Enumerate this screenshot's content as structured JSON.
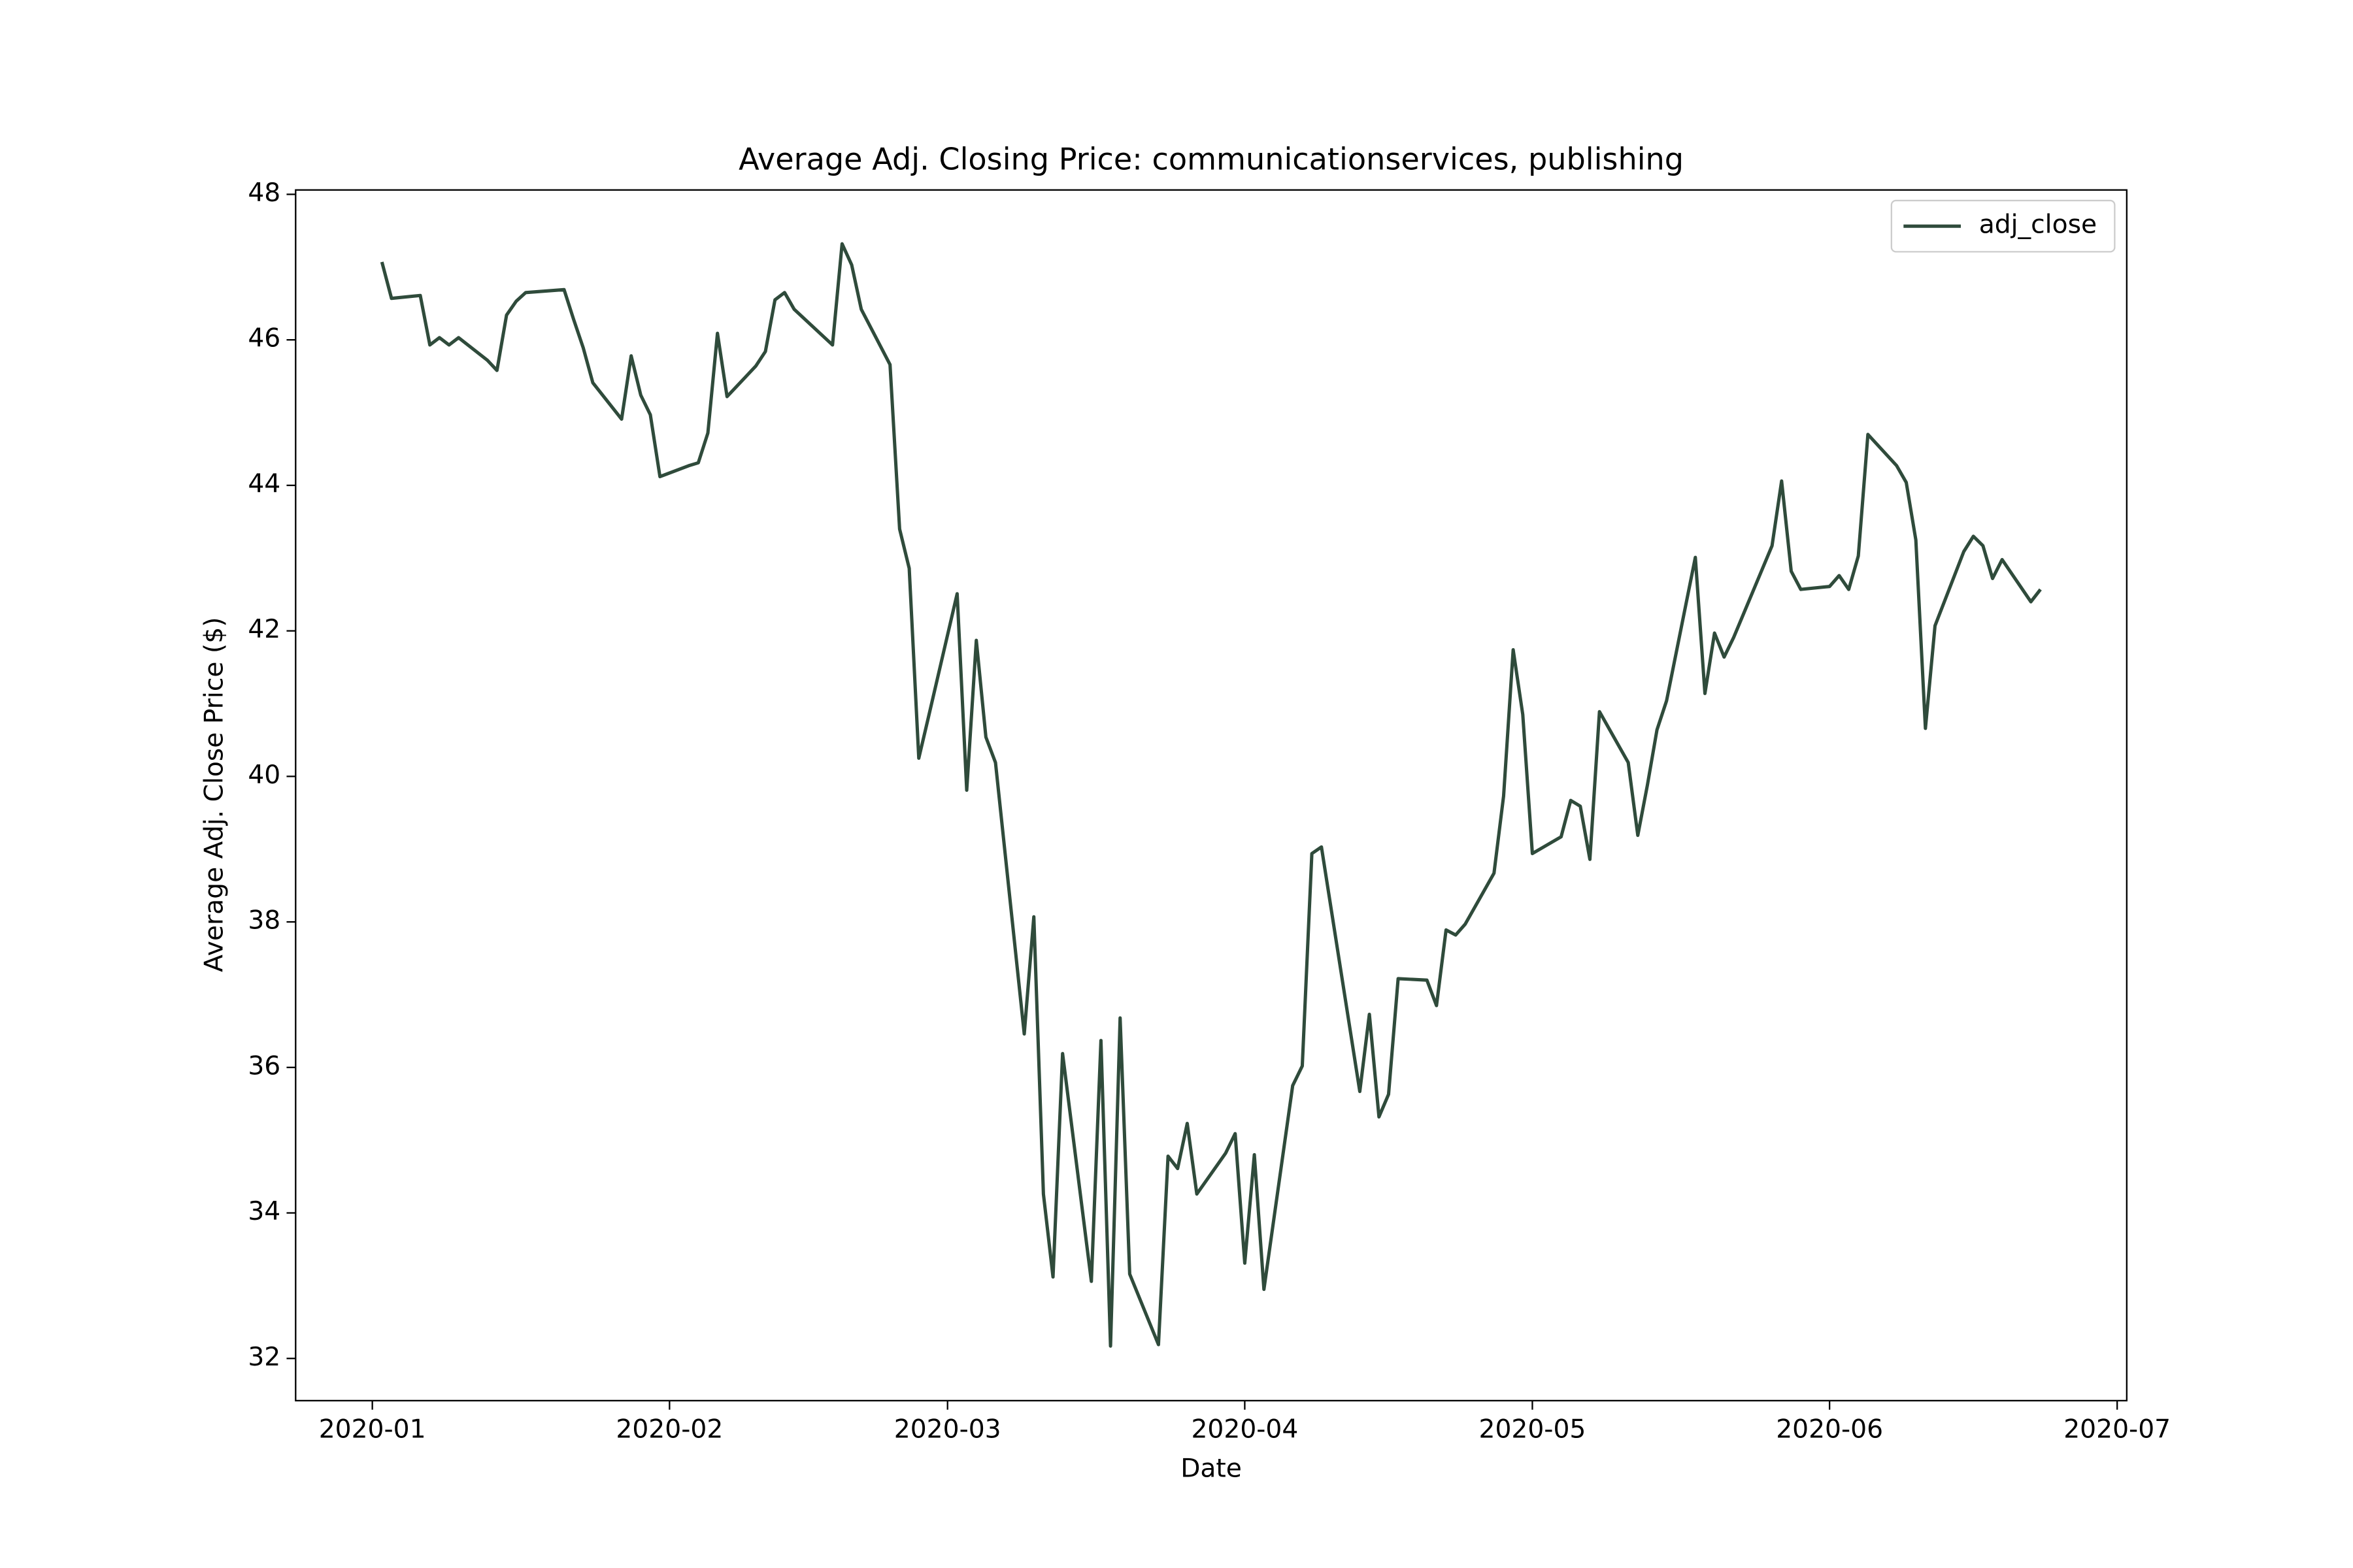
{
  "chart_data": {
    "type": "line",
    "title": "Average Adj. Closing Price: communicationservices, publishing",
    "xlabel": "Date",
    "ylabel": "Average Adj. Close Price ($)",
    "x": [
      "2020-01-02",
      "2020-01-03",
      "2020-01-06",
      "2020-01-07",
      "2020-01-08",
      "2020-01-09",
      "2020-01-10",
      "2020-01-13",
      "2020-01-14",
      "2020-01-15",
      "2020-01-16",
      "2020-01-17",
      "2020-01-21",
      "2020-01-22",
      "2020-01-23",
      "2020-01-24",
      "2020-01-27",
      "2020-01-28",
      "2020-01-29",
      "2020-01-30",
      "2020-01-31",
      "2020-02-03",
      "2020-02-04",
      "2020-02-05",
      "2020-02-06",
      "2020-02-07",
      "2020-02-10",
      "2020-02-11",
      "2020-02-12",
      "2020-02-13",
      "2020-02-14",
      "2020-02-18",
      "2020-02-19",
      "2020-02-20",
      "2020-02-21",
      "2020-02-24",
      "2020-02-25",
      "2020-02-26",
      "2020-02-27",
      "2020-02-28",
      "2020-03-02",
      "2020-03-03",
      "2020-03-04",
      "2020-03-05",
      "2020-03-06",
      "2020-03-09",
      "2020-03-10",
      "2020-03-11",
      "2020-03-12",
      "2020-03-13",
      "2020-03-16",
      "2020-03-17",
      "2020-03-18",
      "2020-03-19",
      "2020-03-20",
      "2020-03-23",
      "2020-03-24",
      "2020-03-25",
      "2020-03-26",
      "2020-03-27",
      "2020-03-30",
      "2020-03-31",
      "2020-04-01",
      "2020-04-02",
      "2020-04-03",
      "2020-04-06",
      "2020-04-07",
      "2020-04-08",
      "2020-04-09",
      "2020-04-13",
      "2020-04-14",
      "2020-04-15",
      "2020-04-16",
      "2020-04-17",
      "2020-04-20",
      "2020-04-21",
      "2020-04-22",
      "2020-04-23",
      "2020-04-24",
      "2020-04-27",
      "2020-04-28",
      "2020-04-29",
      "2020-04-30",
      "2020-05-01",
      "2020-05-04",
      "2020-05-05",
      "2020-05-06",
      "2020-05-07",
      "2020-05-08",
      "2020-05-11",
      "2020-05-12",
      "2020-05-13",
      "2020-05-14",
      "2020-05-15",
      "2020-05-18",
      "2020-05-19",
      "2020-05-20",
      "2020-05-21",
      "2020-05-22",
      "2020-05-26",
      "2020-05-27",
      "2020-05-28",
      "2020-05-29",
      "2020-06-01",
      "2020-06-02",
      "2020-06-03",
      "2020-06-04",
      "2020-06-05",
      "2020-06-08",
      "2020-06-09",
      "2020-06-10",
      "2020-06-11",
      "2020-06-12",
      "2020-06-15",
      "2020-06-16",
      "2020-06-17",
      "2020-06-18",
      "2020-06-19",
      "2020-06-22",
      "2020-06-23"
    ],
    "series": [
      {
        "name": "adj_close",
        "color": "#2f4b3b",
        "values": [
          47.07,
          46.57,
          46.61,
          45.93,
          46.03,
          45.93,
          46.03,
          45.72,
          45.58,
          46.34,
          46.53,
          46.65,
          46.69,
          46.28,
          45.89,
          45.41,
          44.91,
          45.78,
          45.24,
          44.97,
          44.12,
          44.27,
          44.31,
          44.72,
          46.09,
          45.22,
          45.64,
          45.84,
          46.55,
          46.65,
          46.42,
          45.93,
          47.32,
          47.03,
          46.42,
          45.66,
          43.4,
          42.86,
          40.25,
          40.81,
          42.51,
          39.81,
          41.87,
          40.54,
          40.19,
          36.46,
          38.07,
          34.26,
          33.12,
          36.19,
          33.06,
          36.37,
          32.17,
          36.68,
          33.16,
          32.19,
          34.78,
          34.61,
          35.23,
          34.26,
          34.82,
          35.09,
          33.31,
          34.8,
          32.95,
          35.75,
          36.02,
          38.94,
          39.03,
          35.67,
          36.73,
          35.32,
          35.63,
          37.22,
          37.2,
          36.85,
          37.89,
          37.82,
          37.97,
          38.67,
          39.73,
          41.74,
          40.85,
          38.94,
          39.17,
          39.67,
          39.59,
          38.86,
          40.89,
          40.19,
          39.19,
          39.88,
          40.64,
          41.04,
          43.01,
          41.14,
          41.97,
          41.64,
          41.91,
          43.17,
          44.06,
          42.82,
          42.57,
          42.61,
          42.76,
          42.57,
          43.03,
          44.7,
          44.27,
          44.04,
          43.25,
          40.66,
          42.07,
          43.09,
          43.3,
          43.17,
          42.72,
          42.98,
          42.4,
          42.57
        ]
      }
    ],
    "xlim": [
      "2019-12-24",
      "2020-07-02"
    ],
    "xticks": [
      {
        "value": "2020-01-01",
        "label": "2020-01"
      },
      {
        "value": "2020-02-01",
        "label": "2020-02"
      },
      {
        "value": "2020-03-01",
        "label": "2020-03"
      },
      {
        "value": "2020-04-01",
        "label": "2020-04"
      },
      {
        "value": "2020-05-01",
        "label": "2020-05"
      },
      {
        "value": "2020-06-01",
        "label": "2020-06"
      },
      {
        "value": "2020-07-01",
        "label": "2020-07"
      }
    ],
    "ylim": [
      31.42,
      48.06
    ],
    "yticks": [
      32,
      34,
      36,
      38,
      40,
      42,
      44,
      46,
      48
    ],
    "grid": false,
    "legend": "upper right"
  }
}
